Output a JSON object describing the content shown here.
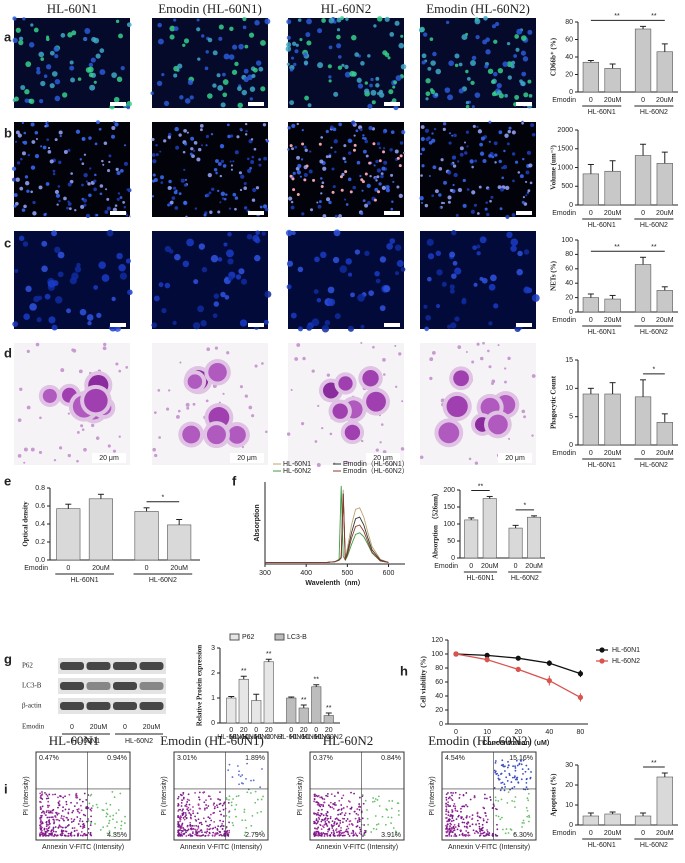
{
  "figure": {
    "panel_labels": [
      "a",
      "b",
      "c",
      "d",
      "e",
      "f",
      "g",
      "h",
      "i"
    ],
    "column_headers": [
      "HL-60N1",
      "Emodin (HL-60N1)",
      "HL-60N2",
      "Emodin (HL-60N2)"
    ],
    "scale_bar": "20 μm",
    "blot": {
      "rows": [
        "P62",
        "LC3-B",
        "β-actin"
      ],
      "treatment": "Emodin",
      "doses": [
        "0",
        "20uM",
        "0",
        "20uM"
      ],
      "groups": [
        "HL-60N1",
        "HL-60N2"
      ]
    },
    "flow": {
      "x_label": "Annexin V-FITC (Intensity)",
      "y_label": "PI (Intensity)",
      "quadrants": [
        [
          "0.47%",
          "0.94%",
          "4.35%"
        ],
        [
          "3.01%",
          "1.89%",
          "2.79%"
        ],
        [
          "0.37%",
          "0.84%",
          "3.91%"
        ],
        [
          "4.54%",
          "15.16%",
          "6.30%"
        ]
      ]
    }
  },
  "chart_data": [
    {
      "type": "bar",
      "y_label": "CD66b⁺ (%)",
      "x_prefix": "Emodin",
      "categories": [
        "0",
        "20uM",
        "0",
        "20uM"
      ],
      "group_labels": [
        "HL-60N1",
        "HL-60N2"
      ],
      "values": [
        34,
        27,
        72,
        46
      ],
      "errors": [
        2,
        5,
        3,
        9
      ],
      "color": "#c8c8c8",
      "ylim": [
        0,
        80
      ],
      "yticks": [
        0,
        20,
        40,
        60,
        80
      ],
      "annotations": [
        {
          "text": "**",
          "between": [
            0,
            2
          ]
        },
        {
          "text": "**",
          "between": [
            2,
            3
          ]
        }
      ]
    },
    {
      "type": "bar",
      "y_label": "Volume (um⁻³)",
      "x_prefix": "Emodin",
      "categories": [
        "0",
        "20uM",
        "0",
        "20uM"
      ],
      "group_labels": [
        "HL-60N1",
        "HL-60N2"
      ],
      "values": [
        830,
        900,
        1320,
        1110
      ],
      "errors": [
        250,
        280,
        300,
        300
      ],
      "color": "#c8c8c8",
      "ylim": [
        0,
        2000
      ],
      "yticks": [
        0,
        500,
        1000,
        1500,
        2000
      ]
    },
    {
      "type": "bar",
      "y_label": "NETs (%)",
      "x_prefix": "Emodin",
      "categories": [
        "0",
        "20uM",
        "0",
        "20uM"
      ],
      "group_labels": [
        "HL-60N1",
        "HL-60N2"
      ],
      "values": [
        20,
        18,
        66,
        30
      ],
      "errors": [
        5,
        5,
        10,
        5
      ],
      "color": "#c8c8c8",
      "ylim": [
        0,
        100
      ],
      "yticks": [
        0,
        20,
        40,
        60,
        80,
        100
      ],
      "annotations": [
        {
          "text": "**",
          "between": [
            0,
            2
          ]
        },
        {
          "text": "**",
          "between": [
            2,
            3
          ]
        }
      ]
    },
    {
      "type": "bar",
      "y_label": "Phagocytic Count",
      "x_prefix": "Emodin",
      "categories": [
        "0",
        "20uM",
        "0",
        "20uM"
      ],
      "group_labels": [
        "HL-60N1",
        "HL-60N2"
      ],
      "values": [
        9,
        9,
        8.5,
        4
      ],
      "errors": [
        1,
        2,
        3,
        1.5
      ],
      "color": "#c8c8c8",
      "ylim": [
        0,
        15
      ],
      "yticks": [
        0,
        5,
        10,
        15
      ],
      "annotations": [
        {
          "text": "*",
          "between": [
            2,
            3
          ]
        }
      ]
    },
    {
      "type": "bar",
      "y_label": "Optical density",
      "x_prefix": "Emodin",
      "categories": [
        "0",
        "20uM",
        "0",
        "20uM"
      ],
      "group_labels": [
        "HL-60N1",
        "HL-60N2"
      ],
      "values": [
        0.57,
        0.68,
        0.54,
        0.39
      ],
      "errors": [
        0.05,
        0.05,
        0.04,
        0.06
      ],
      "color": "#d9d9d9",
      "ylim": [
        0,
        0.8
      ],
      "yticks": [
        {
          "value": 0,
          "label": "0.0"
        },
        0.2,
        0.4,
        0.6,
        0.8
      ],
      "annotations": [
        {
          "text": "*",
          "between": [
            2,
            3
          ]
        }
      ]
    },
    {
      "type": "line",
      "x_label": "Wavelenth（nm）",
      "y_label": "Absorption",
      "x": [
        300,
        350,
        400,
        450,
        470,
        480,
        485,
        490,
        495,
        500,
        510,
        520,
        530,
        540,
        550,
        560,
        580,
        600
      ],
      "xlim": [
        300,
        640
      ],
      "xticks": [
        300,
        400,
        500,
        600
      ],
      "ylim": [
        0,
        1.05
      ],
      "series": [
        {
          "name": "HL-60N1",
          "color": "#b8a46a",
          "values": [
            0.02,
            0.02,
            0.02,
            0.02,
            0.03,
            0.05,
            0.1,
            0.95,
            0.08,
            0.2,
            0.5,
            0.7,
            0.72,
            0.6,
            0.4,
            0.22,
            0.06,
            0.02
          ]
        },
        {
          "name": "HL-60N2",
          "color": "#3f9a47",
          "values": [
            0.02,
            0.02,
            0.02,
            0.02,
            0.03,
            0.06,
            1.0,
            0.1,
            0.05,
            0.1,
            0.25,
            0.38,
            0.4,
            0.35,
            0.25,
            0.14,
            0.04,
            0.02
          ]
        },
        {
          "name": "Emodin（HL-60N1）",
          "color": "#333333",
          "values": [
            0.02,
            0.02,
            0.02,
            0.02,
            0.03,
            0.05,
            0.08,
            0.9,
            0.05,
            0.15,
            0.4,
            0.58,
            0.6,
            0.5,
            0.33,
            0.18,
            0.05,
            0.02
          ]
        },
        {
          "name": "Emodin（HL-60N2）",
          "color": "#8b3a2a",
          "values": [
            0.02,
            0.02,
            0.02,
            0.02,
            0.03,
            0.05,
            0.08,
            0.88,
            0.05,
            0.12,
            0.33,
            0.48,
            0.5,
            0.42,
            0.28,
            0.15,
            0.04,
            0.02
          ]
        }
      ]
    },
    {
      "type": "bar",
      "y_label": "Absorption （526nm）",
      "x_prefix": "Emodin",
      "categories": [
        "0",
        "20uM",
        "0",
        "20uM"
      ],
      "group_labels": [
        "HL-60N1",
        "HL-60N2"
      ],
      "values": [
        112,
        175,
        88,
        120
      ],
      "errors": [
        6,
        6,
        8,
        4
      ],
      "color": "#d9d9d9",
      "ylim": [
        0,
        200
      ],
      "yticks": [
        0,
        50,
        100,
        150,
        200
      ],
      "annotations": [
        {
          "text": "**",
          "between": [
            0,
            1
          ]
        },
        {
          "text": "*",
          "between": [
            2,
            3
          ]
        }
      ]
    },
    {
      "type": "bar",
      "y_label": "Relative Protein expression",
      "categories": [
        "0",
        "20",
        "0",
        "20"
      ],
      "category_groups": [
        "HL-60N1",
        "HL-60N1",
        "HL-60N2",
        "HL-60N2"
      ],
      "ylim": [
        0,
        3
      ],
      "yticks": [
        0,
        1,
        2,
        3
      ],
      "series": [
        {
          "name": "P62",
          "color": "#e6e6e6",
          "values": [
            1.0,
            1.75,
            0.9,
            2.45
          ],
          "errors": [
            0.06,
            0.12,
            0.25,
            0.1
          ],
          "marks": [
            null,
            "**",
            null,
            "**"
          ]
        },
        {
          "name": "LC3-B",
          "color": "#bdbdbd",
          "values": [
            1.0,
            0.6,
            1.45,
            0.3
          ],
          "errors": [
            0.04,
            0.12,
            0.08,
            0.1
          ],
          "marks": [
            null,
            "**",
            "**",
            "**"
          ]
        }
      ]
    },
    {
      "type": "line",
      "x_label": "Concentration（uM）",
      "y_label": "Cell viability (%)",
      "categories": [
        "0",
        "10",
        "20",
        "40",
        "80"
      ],
      "ylim": [
        0,
        120
      ],
      "yticks": [
        0,
        20,
        40,
        60,
        80,
        100,
        120
      ],
      "series": [
        {
          "name": "HL-60N1",
          "color": "#111111",
          "values": [
            100,
            98,
            94,
            87,
            72
          ],
          "errors": [
            2,
            2,
            2,
            4,
            5
          ]
        },
        {
          "name": "HL-60N2",
          "color": "#d9534f",
          "values": [
            100,
            92,
            78,
            62,
            38
          ],
          "errors": [
            2,
            4,
            3,
            7,
            6
          ]
        }
      ]
    },
    {
      "type": "bar",
      "y_label": "Apoptosis (%)",
      "x_prefix": "Emodin",
      "categories": [
        "0",
        "20uM",
        "0",
        "20uM"
      ],
      "group_labels": [
        "HL-60N1",
        "HL-60N2"
      ],
      "values": [
        4.5,
        5.5,
        4.5,
        24
      ],
      "errors": [
        1.5,
        1,
        1.5,
        2
      ],
      "color": "#d9d9d9",
      "ylim": [
        0,
        30
      ],
      "yticks": [
        0,
        10,
        20,
        30
      ],
      "annotations": [
        {
          "text": "**",
          "between": [
            2,
            3
          ]
        }
      ]
    }
  ]
}
